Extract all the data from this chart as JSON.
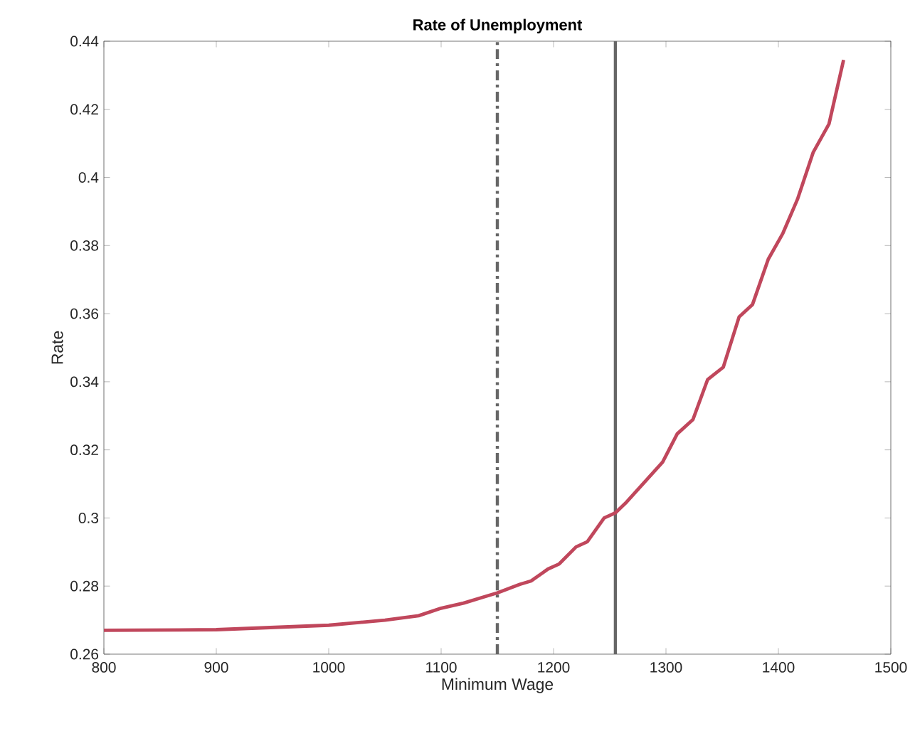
{
  "chart_data": {
    "type": "line",
    "title": "Rate of Unemployment",
    "xlabel": "Minimum Wage",
    "ylabel": "Rate",
    "x": [
      800,
      900,
      1000,
      1050,
      1080,
      1100,
      1120,
      1140,
      1150,
      1170,
      1180,
      1195,
      1205,
      1220,
      1230,
      1245,
      1255,
      1265,
      1297,
      1310,
      1324,
      1337,
      1351,
      1365,
      1377,
      1391,
      1404,
      1417,
      1431,
      1445,
      1458
    ],
    "series": [
      {
        "color": "#c0475c",
        "values": [
          0.267,
          0.2672,
          0.2685,
          0.27,
          0.2713,
          0.2735,
          0.275,
          0.277,
          0.278,
          0.2805,
          0.2815,
          0.285,
          0.2865,
          0.2915,
          0.293,
          0.3,
          0.3015,
          0.3047,
          0.3164,
          0.3247,
          0.3289,
          0.3406,
          0.3443,
          0.359,
          0.3627,
          0.376,
          0.3836,
          0.3936,
          0.4074,
          0.4157,
          0.4345
        ]
      }
    ],
    "xlim": [
      800,
      1500
    ],
    "xticks": [
      800,
      900,
      1000,
      1100,
      1200,
      1300,
      1400,
      1500
    ],
    "ylim": [
      0.26,
      0.44
    ],
    "yticks": [
      0.26,
      0.28,
      0.3,
      0.32,
      0.34,
      0.36,
      0.38,
      0.4,
      0.42,
      0.44
    ],
    "marker": "none",
    "line_style": "solid",
    "ref_lines": [
      {
        "axis": "x",
        "value": 1150,
        "color": "#666666",
        "line_style": "dashed"
      },
      {
        "axis": "x",
        "value": 1255,
        "color": "#666666",
        "line_style": "solid"
      }
    ]
  }
}
